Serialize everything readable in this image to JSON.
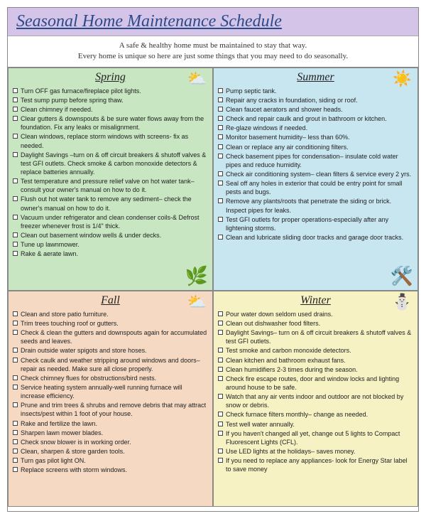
{
  "title": "Seasonal Home Maintenance Schedule",
  "subtitle_line1": "A safe & healthy home must be maintained to stay that way.",
  "subtitle_line2": "Every home is unique so here are just some things that you may need to do seasonally.",
  "colors": {
    "title_bg": "#d4c5e8",
    "spring_bg": "#c7e6c1",
    "summer_bg": "#c8e6f0",
    "fall_bg": "#f5d9c2",
    "winter_bg": "#f7f2c4"
  },
  "seasons": [
    {
      "key": "spring",
      "name": "Spring",
      "icon_tr": "⛅",
      "icon_br": "🌿",
      "items": [
        "Turn OFF gas furnace/fireplace pilot lights.",
        "Test sump pump before spring thaw.",
        "Clean chimney if needed.",
        "Clear gutters & downspouts & be sure water flows away from the foundation. Fix any leaks or misalignment.",
        "Clean windows, replace storm windows with screens- fix as needed.",
        "Daylight Savings –turn on & off circuit breakers & shutoff valves & test GFI outlets. Check smoke & carbon monoxide detectors & replace batteries annually.",
        "Test temperature and pressure relief valve on hot water tank– consult your owner's manual on how to do it.",
        "Flush out hot water tank to remove any sediment– check the owner's manual on how to do it.",
        "Vacuum under refrigerator and clean condenser coils-& Defrost freezer whenever frost is 1/4\" thick.",
        "Clean out basement window wells & under decks.",
        "Tune up lawnmower.",
        "Rake & aerate lawn."
      ]
    },
    {
      "key": "summer",
      "name": "Summer",
      "icon_tr": "☀️",
      "icon_br": "🛠️",
      "items": [
        "Pump septic tank.",
        "Repair any cracks in foundation, siding or roof.",
        "Clean faucet aerators and shower heads.",
        "Check and repair caulk and grout in bathroom or kitchen.",
        "Re-glaze windows if needed.",
        "Monitor basement humidity– less than 60%.",
        "Clean or replace any air conditioning filters.",
        "Check basement pipes for condensation– insulate cold water pipes and reduce humidity.",
        "Check air conditioning system– clean filters & service every 2 yrs.",
        "Seal off any holes in exterior that could be entry point for small pests and bugs.",
        "Remove any plants/roots that penetrate the siding or brick. Inspect pipes for leaks.",
        "Test GFI outlets for proper operations-especially after any lightening storms.",
        "Clean and lubricate sliding door tracks and garage door tracks."
      ]
    },
    {
      "key": "fall",
      "name": "Fall",
      "icon_tr": "⛅",
      "icon_br": "",
      "items": [
        "Clean and store patio furniture.",
        "Trim trees touching roof or gutters.",
        "Check & clean the gutters and downspouts again for accumulated seeds and leaves.",
        "Drain outside water spigots and store hoses.",
        "Check caulk and weather stripping around windows and doors– repair as needed. Make sure all close properly.",
        "Check chimney flues for obstructions/bird nests.",
        "Service heating system annually-well running furnace will increase efficiency.",
        "Prune and trim trees & shrubs and remove debris that may attract insects/pest within 1 foot of your house.",
        "Rake and fertilize the lawn.",
        "Sharpen lawn mower blades.",
        "Check snow blower is in working order.",
        "Clean, sharpen & store garden tools.",
        "Turn gas pilot light ON.",
        "Replace screens with storm windows."
      ]
    },
    {
      "key": "winter",
      "name": "Winter",
      "icon_tr": "⛄",
      "icon_br": "",
      "items": [
        "Pour water down seldom used drains.",
        "Clean out dishwasher food filters.",
        "Daylight Savings– turn on & off circuit breakers & shutoff valves & test GFI outlets.",
        "Test smoke and carbon monoxide detectors.",
        "Clean kitchen and bathroom exhaust fans.",
        "Clean humidifiers 2-3 times during the season.",
        "Check fire escape routes, door and window locks and lighting around house to be safe.",
        "Watch that any air vents indoor and outdoor are not blocked by snow or debris.",
        "Check furnace filters monthly– change as needed.",
        "Test well water annually.",
        "If you haven't changed all yet, change out 5 lights to Compact Fluorescent Lights (CFL).",
        "Use LED lights at the holidays– saves money.",
        "If you need to replace any appliances- look for Energy Star label to save money"
      ]
    }
  ]
}
